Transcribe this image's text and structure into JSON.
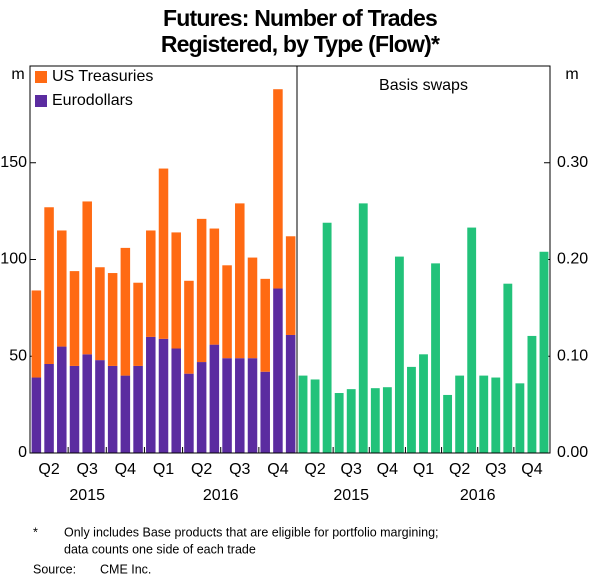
{
  "title_lines": [
    "Futures: Number of Trades",
    "Registered, by Type (Flow)*"
  ],
  "chart_data": [
    {
      "type": "bar",
      "stacked": true,
      "y_unit": "m",
      "legend": "top-left",
      "quarters": [
        "Q2",
        "Q3",
        "Q4",
        "Q1",
        "Q2",
        "Q3",
        "Q4"
      ],
      "years": [
        "2015",
        "2016"
      ],
      "series": [
        {
          "name": "US Treasuries",
          "color": "#ff6a13",
          "values": [
            45,
            81,
            60,
            49,
            79,
            48,
            48,
            66,
            43,
            55,
            88,
            60,
            48,
            74,
            60,
            48,
            80,
            52,
            48,
            103,
            51
          ]
        },
        {
          "name": "Eurodollars",
          "color": "#5b2ca0",
          "values": [
            39,
            46,
            55,
            45,
            51,
            48,
            45,
            40,
            45,
            60,
            59,
            54,
            41,
            47,
            56,
            49,
            49,
            49,
            42,
            85,
            61
          ]
        }
      ],
      "ylim": [
        0,
        200
      ],
      "yticks": [
        0,
        50,
        100,
        150
      ]
    },
    {
      "type": "bar",
      "title": "Basis swaps",
      "y_unit": "m",
      "quarters": [
        "Q2",
        "Q3",
        "Q4",
        "Q1",
        "Q2",
        "Q3",
        "Q4"
      ],
      "years": [
        "2015",
        "2016"
      ],
      "series": [
        {
          "name": "Basis swaps",
          "color": "#22c27a",
          "values": [
            0.08,
            0.076,
            0.238,
            0.062,
            0.066,
            0.258,
            0.067,
            0.068,
            0.203,
            0.089,
            0.102,
            0.196,
            0.06,
            0.08,
            0.233,
            0.08,
            0.078,
            0.175,
            0.072,
            0.121,
            0.208
          ]
        }
      ],
      "ylim": [
        0,
        0.4
      ],
      "yticks": [
        {
          "value": 0,
          "label": "0.00"
        },
        {
          "value": 0.1,
          "label": "0.10"
        },
        {
          "value": 0.2,
          "label": "0.20"
        },
        {
          "value": 0.3,
          "label": "0.30"
        }
      ]
    }
  ],
  "notes": {
    "marker": "*",
    "lines": [
      "Only includes Base products that are eligible for portfolio margining;",
      "data counts one side of each trade"
    ],
    "source_label": "Source:",
    "source": "CME Inc."
  }
}
